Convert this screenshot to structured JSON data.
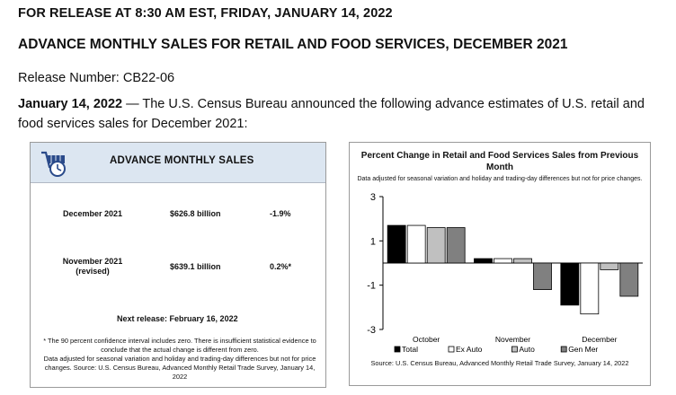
{
  "header": {
    "release_line": "FOR RELEASE AT 8:30 AM EST, FRIDAY, JANUARY 14, 2022",
    "title": "ADVANCE MONTHLY SALES FOR RETAIL AND FOOD SERVICES, DECEMBER 2021",
    "release_number": "Release Number: CB22-06",
    "intro_date": "January 14, 2022",
    "intro_text": " — The U.S. Census Bureau announced the following advance estimates of U.S. retail and food services sales for December 2021:"
  },
  "sales_box": {
    "title": "ADVANCE MONTHLY SALES",
    "icon": "shopping-cart-clock-icon",
    "rows": [
      {
        "label_line1": "December 2021",
        "label_line2": "",
        "amount": "$626.8 billion",
        "change": "-1.9%"
      },
      {
        "label_line1": "November 2021",
        "label_line2": "(revised)",
        "amount": "$639.1 billion",
        "change": "0.2%*"
      }
    ],
    "next_release": "Next release: February 16, 2022",
    "footnote_1": "* The 90 percent confidence interval includes zero. There is insufficient statistical evidence to conclude that the actual change is different from zero.",
    "footnote_2": "Data adjusted for seasonal variation and holiday and trading-day differences but not for price changes. Source: U.S. Census Bureau, Advanced Monthly Retail Trade Survey, January 14, 2022"
  },
  "chart_data": {
    "type": "bar",
    "title": "Percent Change in Retail and Food Services Sales from Previous Month",
    "subtitle": "Data adjusted for seasonal variation and holiday and trading-day differences but not for price changes.",
    "categories": [
      "October",
      "November",
      "December"
    ],
    "series": [
      {
        "name": "Total",
        "values": [
          1.7,
          0.2,
          -1.9
        ],
        "color": "#000000"
      },
      {
        "name": "Ex Auto",
        "values": [
          1.7,
          0.2,
          -2.3
        ],
        "color": "#ffffff"
      },
      {
        "name": "Auto",
        "values": [
          1.6,
          0.2,
          -0.3
        ],
        "color": "#c0c0c0"
      },
      {
        "name": "Gen Mer",
        "values": [
          1.6,
          -1.2,
          -1.5
        ],
        "color": "#808080"
      }
    ],
    "yticks": [
      "3",
      "1",
      "-1",
      "-3"
    ],
    "ylim": [
      -3,
      3
    ],
    "legend_position": "bottom",
    "source": "Source: U.S. Census Bureau, Advanced Monthly Retail Trade Survey, January 14, 2022"
  }
}
